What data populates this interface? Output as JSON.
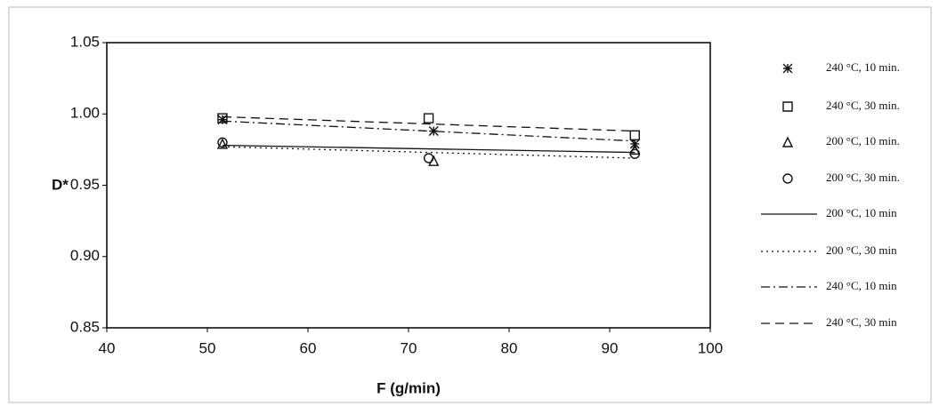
{
  "chart_data": {
    "type": "scatter",
    "y_label": "D*",
    "x_label": "F (g/min)",
    "xlim": [
      40,
      100
    ],
    "xticks": [
      40,
      50,
      60,
      70,
      80,
      90,
      100
    ],
    "ylim": [
      0.85,
      1.05
    ],
    "yticks": [
      0.85,
      {
        "value": 0.9,
        "label": "0.90"
      },
      0.95,
      {
        "value": 1,
        "label": "1.00"
      },
      1.05
    ],
    "color": "#111111",
    "series": [
      {
        "name": "240 °C, 10 min.",
        "marker": "asterisk",
        "x": [
          51.5,
          72.5,
          92.5
        ],
        "values": [
          0.996,
          0.988,
          0.979
        ]
      },
      {
        "name": "240 °C, 30 min.",
        "marker": "square",
        "x": [
          51.5,
          72,
          92.5
        ],
        "values": [
          0.997,
          0.997,
          0.985
        ]
      },
      {
        "name": "200 °C, 10 min.",
        "marker": "triangle",
        "x": [
          51.5,
          72.5,
          92.5
        ],
        "values": [
          0.979,
          0.967,
          0.975
        ]
      },
      {
        "name": "200 °C, 30 min.",
        "marker": "circle",
        "x": [
          51.5,
          72,
          92.5
        ],
        "values": [
          0.98,
          0.969,
          0.972
        ]
      },
      {
        "name": "200 °C, 10 min",
        "dash": "solid",
        "x": [
          51.5,
          92.5
        ],
        "values": [
          0.978,
          0.973
        ]
      },
      {
        "name": "200 °C, 30 min",
        "dash": "dotted",
        "x": [
          51.5,
          92.5
        ],
        "values": [
          0.977,
          0.969
        ]
      },
      {
        "name": "240 °C, 10 min",
        "dash": "dashdot",
        "x": [
          51.5,
          92.5
        ],
        "values": [
          0.995,
          0.981
        ]
      },
      {
        "name": "240 °C, 30 min",
        "dash": "dashed",
        "x": [
          51.5,
          92.5
        ],
        "values": [
          0.998,
          0.988
        ]
      }
    ]
  }
}
